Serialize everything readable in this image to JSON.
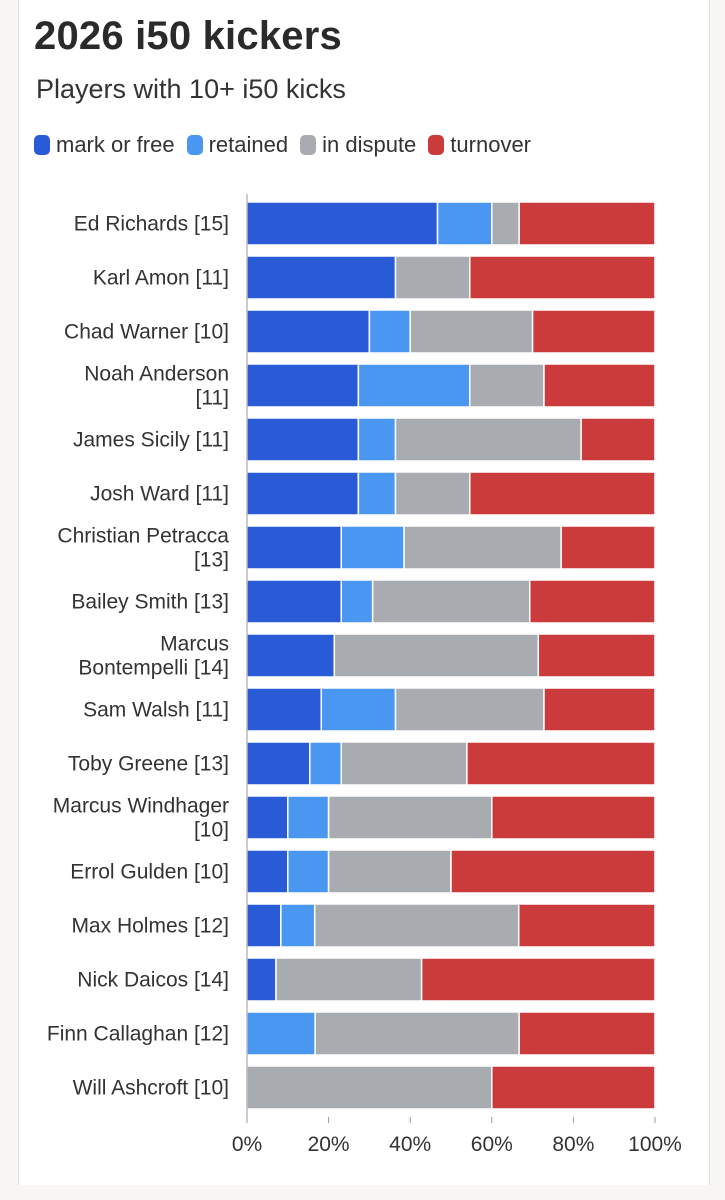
{
  "title": "2026 i50 kickers",
  "subtitle": "Players with 10+ i50 kicks",
  "colors": {
    "mark_or_free": "#2a5bd7",
    "retained": "#4a97f2",
    "in_dispute": "#a8abb0",
    "turnover": "#cc3b3b"
  },
  "legend": [
    {
      "key": "mark_or_free",
      "label": "mark or free"
    },
    {
      "key": "retained",
      "label": "retained"
    },
    {
      "key": "in_dispute",
      "label": "in dispute"
    },
    {
      "key": "turnover",
      "label": "turnover"
    }
  ],
  "chart_data": {
    "type": "bar",
    "orientation": "horizontal",
    "stacked": true,
    "title": "2026 i50 kickers",
    "subtitle": "Players with 10+ i50 kicks",
    "xlabel": "",
    "ylabel": "",
    "xlim": [
      0,
      100
    ],
    "x_ticks": [
      "0%",
      "20%",
      "40%",
      "60%",
      "80%",
      "100%"
    ],
    "categories": [
      [
        "Ed Richards [15]"
      ],
      [
        "Karl Amon [11]"
      ],
      [
        "Chad Warner [10]"
      ],
      [
        "Noah Anderson",
        "[11]"
      ],
      [
        "James Sicily [11]"
      ],
      [
        "Josh Ward [11]"
      ],
      [
        "Christian Petracca",
        "[13]"
      ],
      [
        "Bailey Smith [13]"
      ],
      [
        "Marcus",
        "Bontempelli [14]"
      ],
      [
        "Sam Walsh [11]"
      ],
      [
        "Toby Greene [13]"
      ],
      [
        "Marcus Windhager",
        "[10]"
      ],
      [
        "Errol Gulden [10]"
      ],
      [
        "Max Holmes [12]"
      ],
      [
        "Nick Daicos [14]"
      ],
      [
        "Finn Callaghan [12]"
      ],
      [
        "Will Ashcroft [10]"
      ]
    ],
    "series": [
      {
        "name": "mark or free",
        "key": "mark_or_free",
        "values": [
          46.7,
          36.4,
          30,
          27.3,
          27.3,
          27.3,
          23.1,
          23.1,
          21.4,
          18.2,
          15.4,
          10,
          10,
          8.3,
          7.1,
          0,
          0
        ]
      },
      {
        "name": "retained",
        "key": "retained",
        "values": [
          13.3,
          0,
          10,
          27.3,
          9.1,
          9.1,
          15.4,
          7.7,
          0,
          18.2,
          7.7,
          10,
          10,
          8.3,
          0,
          16.7,
          0
        ]
      },
      {
        "name": "in dispute",
        "key": "in_dispute",
        "values": [
          6.7,
          18.2,
          30,
          18.2,
          45.5,
          18.2,
          38.5,
          38.5,
          50,
          36.4,
          30.8,
          40,
          30,
          50,
          35.7,
          50,
          60
        ]
      },
      {
        "name": "turnover",
        "key": "turnover",
        "values": [
          33.3,
          45.4,
          30,
          27.2,
          18.1,
          45.4,
          23,
          30.7,
          28.6,
          27.2,
          46.1,
          40,
          50,
          33.4,
          57.2,
          33.3,
          40
        ]
      }
    ]
  }
}
